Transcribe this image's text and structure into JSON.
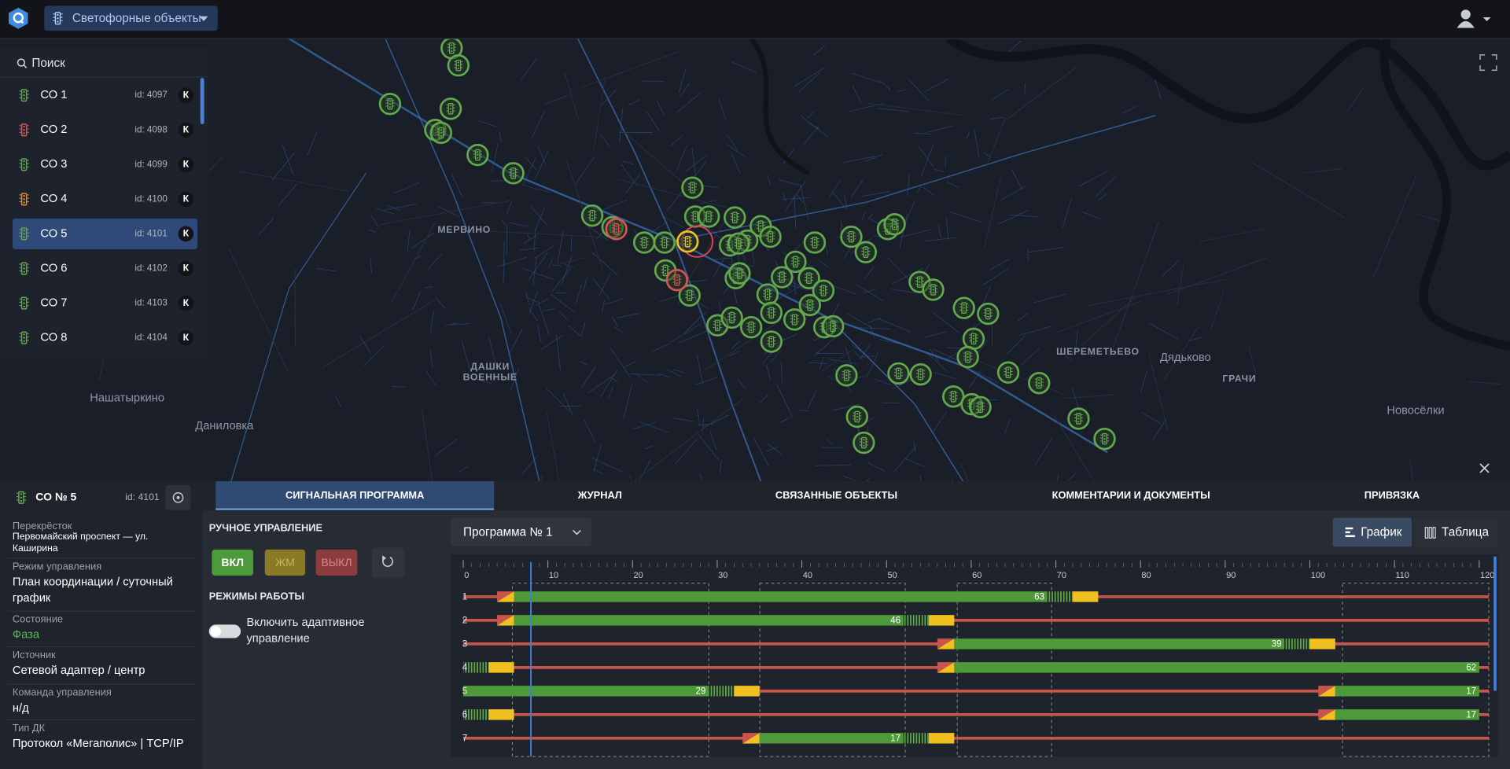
{
  "header": {
    "title": "Светофорные объекты"
  },
  "search": {
    "placeholder": "Поиск"
  },
  "objects": [
    {
      "name": "СО 1",
      "id": "id: 4097",
      "badge": "К",
      "color": "#5fa84a"
    },
    {
      "name": "СО 2",
      "id": "id: 4098",
      "badge": "К",
      "color": "#d9534f"
    },
    {
      "name": "СО 3",
      "id": "id: 4099",
      "badge": "К",
      "color": "#5fa84a"
    },
    {
      "name": "СО 4",
      "id": "id: 4100",
      "badge": "К",
      "color": "#e08a2c"
    },
    {
      "name": "СО 5",
      "id": "id: 4101",
      "badge": "К",
      "color": "#5fa84a"
    },
    {
      "name": "СО 6",
      "id": "id: 4102",
      "badge": "К",
      "color": "#5fa84a"
    },
    {
      "name": "СО 7",
      "id": "id: 4103",
      "badge": "К",
      "color": "#5fa84a"
    },
    {
      "name": "СО 8",
      "id": "id: 4104",
      "badge": "К",
      "color": "#5fa84a"
    }
  ],
  "selected_object": 4,
  "map": {
    "labels": [
      {
        "lines": [
          "МЕРВИНО"
        ]
      },
      {
        "lines": [
          "ДАШКИ",
          "ВОЕННЫЕ"
        ]
      },
      {
        "lines": [
          "Нашатыркино"
        ]
      },
      {
        "lines": [
          "Даниловка"
        ]
      },
      {
        "lines": [
          "ШЕРЕМЕТЬЕВО"
        ]
      },
      {
        "lines": [
          "Дядьково"
        ]
      },
      {
        "lines": [
          "ГРАЧИ"
        ]
      },
      {
        "lines": [
          "Новосёлки"
        ]
      }
    ]
  },
  "details": {
    "title": "СО № 5",
    "id": "id: 4101",
    "fields": [
      {
        "label": "Перекрёсток",
        "value": [
          "Первомайский проспект — ул.",
          "Каширина"
        ]
      },
      {
        "label": "Режим управления",
        "value": [
          "План координации / суточный",
          "график"
        ]
      },
      {
        "label": "Состояние",
        "value": [
          "Фаза"
        ],
        "color": "#5cb85c"
      },
      {
        "label": "Источник",
        "value": [
          "Сетевой адаптер / центр"
        ]
      },
      {
        "label": "Команда управления",
        "value": [
          "н/д"
        ]
      },
      {
        "label": "Тип ДК",
        "value": [
          "Протокол «Мегаполис» | TCP/IP"
        ]
      }
    ]
  },
  "tabs": [
    "СИГНАЛЬНАЯ ПРОГРАММА",
    "ЖУРНАЛ",
    "СВЯЗАННЫЕ ОБЪЕКТЫ",
    "КОММЕНТАРИИ И ДОКУМЕНТЫ",
    "ПРИВЯЗКА"
  ],
  "active_tab": 0,
  "manual": {
    "title": "РУЧНОЕ УПРАВЛЕНИЕ",
    "buttons": [
      "ВКЛ",
      "ЖМ",
      "ВЫКЛ"
    ],
    "modes_title": "РЕЖИМЫ РАБОТЫ",
    "toggle_label": [
      "Включить адаптивное",
      "управление"
    ]
  },
  "program": {
    "selected": "Программа № 1",
    "views": [
      "График",
      "Таблица"
    ],
    "active_view": 0
  },
  "chart_data": {
    "type": "timeline",
    "xlim": [
      0,
      120
    ],
    "xticks": [
      0,
      10,
      20,
      30,
      40,
      50,
      60,
      70,
      80,
      90,
      100,
      110,
      120
    ],
    "current_time": 8,
    "colors": {
      "green": "#4e9a3a",
      "yellow": "#f0c020",
      "red": "#c9544e",
      "blink": "#5fae45"
    },
    "rows": [
      {
        "name": "1",
        "segments": [
          {
            "kind": "ry",
            "from": 4,
            "to": 6
          },
          {
            "kind": "green",
            "from": 6,
            "to": 69,
            "label": 63
          },
          {
            "kind": "blink",
            "from": 69,
            "to": 72
          },
          {
            "kind": "yellow",
            "from": 72,
            "to": 75
          }
        ]
      },
      {
        "name": "2",
        "segments": [
          {
            "kind": "ry",
            "from": 4,
            "to": 6
          },
          {
            "kind": "green",
            "from": 6,
            "to": 52,
            "label": 46
          },
          {
            "kind": "blink",
            "from": 52,
            "to": 55
          },
          {
            "kind": "yellow",
            "from": 55,
            "to": 58
          }
        ]
      },
      {
        "name": "3",
        "segments": [
          {
            "kind": "ry",
            "from": 56,
            "to": 58
          },
          {
            "kind": "green",
            "from": 58,
            "to": 97,
            "label": 39
          },
          {
            "kind": "blink",
            "from": 97,
            "to": 100
          },
          {
            "kind": "yellow",
            "from": 100,
            "to": 103
          }
        ]
      },
      {
        "name": "4",
        "segments": [
          {
            "kind": "blink",
            "from": 0,
            "to": 3
          },
          {
            "kind": "yellow",
            "from": 3,
            "to": 6
          },
          {
            "kind": "ry",
            "from": 56,
            "to": 58
          },
          {
            "kind": "green",
            "from": 58,
            "to": 120,
            "label": 62
          }
        ]
      },
      {
        "name": "5",
        "segments": [
          {
            "kind": "green",
            "from": 0,
            "to": 29,
            "label": 29
          },
          {
            "kind": "blink",
            "from": 29,
            "to": 32
          },
          {
            "kind": "yellow",
            "from": 32,
            "to": 35
          },
          {
            "kind": "ry",
            "from": 101,
            "to": 103
          },
          {
            "kind": "green",
            "from": 103,
            "to": 120,
            "label": 17
          }
        ]
      },
      {
        "name": "6",
        "segments": [
          {
            "kind": "blink",
            "from": 0,
            "to": 3
          },
          {
            "kind": "yellow",
            "from": 3,
            "to": 6
          },
          {
            "kind": "ry",
            "from": 101,
            "to": 103
          },
          {
            "kind": "green",
            "from": 103,
            "to": 120,
            "label": 17
          }
        ]
      },
      {
        "name": "7",
        "segments": [
          {
            "kind": "ry",
            "from": 33,
            "to": 35
          },
          {
            "kind": "green",
            "from": 35,
            "to": 52,
            "label": 17
          },
          {
            "kind": "blink",
            "from": 52,
            "to": 55
          },
          {
            "kind": "yellow",
            "from": 55,
            "to": 58
          }
        ]
      }
    ]
  }
}
